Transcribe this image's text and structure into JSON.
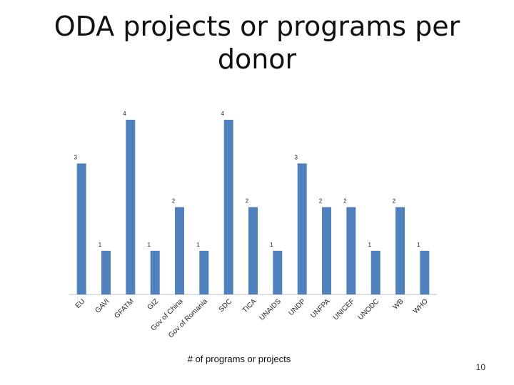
{
  "slide": {
    "title": "ODA projects or programs per donor",
    "page_number": "10"
  },
  "chart_data": {
    "type": "bar",
    "title": "ODA projects or programs per donor",
    "xlabel": "# of programs or projects",
    "ylabel": "",
    "ylim": [
      0,
      4
    ],
    "grid": false,
    "legend": "none",
    "bar_color": "#4f81bd",
    "categories": [
      "EU",
      "GAVI",
      "GFATM",
      "GIZ",
      "Gov of China",
      "Gov of Romania",
      "SDC",
      "TICA",
      "UNAIDS",
      "UNDP",
      "UNFPA",
      "UNICEF",
      "UNODC",
      "WB",
      "WHO"
    ],
    "values": [
      3,
      1,
      4,
      1,
      2,
      1,
      4,
      2,
      1,
      3,
      2,
      2,
      1,
      2,
      1
    ],
    "data_labels": [
      "3",
      "1",
      "4",
      "1",
      "2",
      "1",
      "4",
      "2",
      "1",
      "3",
      "2",
      "2",
      "1",
      "2",
      "1"
    ]
  }
}
